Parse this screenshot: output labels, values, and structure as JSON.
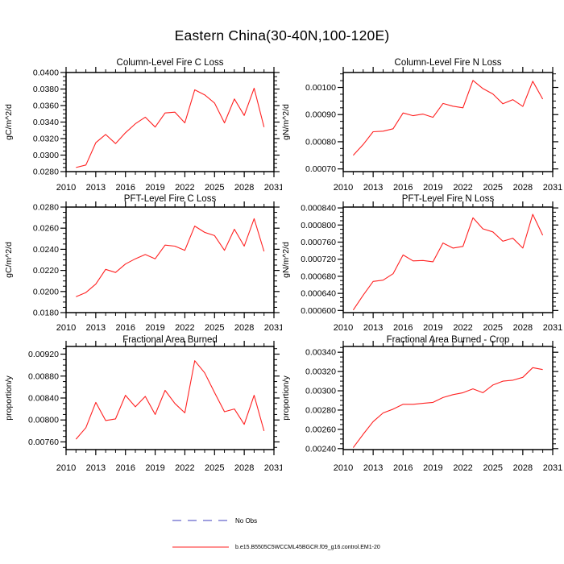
{
  "page_title": "Eastern China(30-40N,100-120E)",
  "colors": {
    "axis": "#000000",
    "series": "#ff2121",
    "no_obs": "#6666cc"
  },
  "legend": {
    "no_obs": {
      "label": "No Obs",
      "style": "dashed",
      "color": "#6666cc"
    },
    "model": {
      "label": "b.e15.B5505C5WCCML45BGCR.f09_g16.control.EM1-20",
      "style": "solid",
      "color": "#ff2121"
    }
  },
  "chart_data": [
    {
      "type": "line",
      "title": "Column-Level Fire C Loss",
      "xlabel": "",
      "ylabel": "gC/m^2/d",
      "color": "#ff2121",
      "grid": false,
      "xlim": [
        2010,
        2031
      ],
      "xticks": [
        2010,
        2013,
        2016,
        2019,
        2022,
        2025,
        2028,
        2031
      ],
      "ylim": [
        0.028,
        0.04
      ],
      "yticks": [
        0.028,
        0.03,
        0.032,
        0.034,
        0.036,
        0.038,
        0.04
      ],
      "ytick_labels": [
        "0.0280",
        "0.0300",
        "0.0320",
        "0.0340",
        "0.0360",
        "0.0380",
        "0.0400"
      ],
      "x": [
        2011,
        2012,
        2013,
        2014,
        2015,
        2016,
        2017,
        2018,
        2019,
        2020,
        2021,
        2022,
        2023,
        2024,
        2025,
        2026,
        2027,
        2028,
        2029,
        2030
      ],
      "values": [
        0.0285,
        0.0288,
        0.0315,
        0.0325,
        0.0314,
        0.0327,
        0.0338,
        0.0346,
        0.0334,
        0.0351,
        0.0352,
        0.0339,
        0.0379,
        0.0373,
        0.0363,
        0.0339,
        0.0368,
        0.0348,
        0.0381,
        0.0334
      ]
    },
    {
      "type": "line",
      "title": "Column-Level Fire N Loss",
      "xlabel": "",
      "ylabel": "gN/m^2/d",
      "color": "#ff2121",
      "grid": false,
      "xlim": [
        2010,
        2031
      ],
      "xticks": [
        2010,
        2013,
        2016,
        2019,
        2022,
        2025,
        2028,
        2031
      ],
      "ylim": [
        0.00069,
        0.001055
      ],
      "yticks": [
        0.0007,
        0.0008,
        0.0009,
        0.001
      ],
      "ytick_labels": [
        "0.00070",
        "0.00080",
        "0.00090",
        "0.00100"
      ],
      "x": [
        2011,
        2012,
        2013,
        2014,
        2015,
        2016,
        2017,
        2018,
        2019,
        2020,
        2021,
        2022,
        2023,
        2024,
        2025,
        2026,
        2027,
        2028,
        2029,
        2030
      ],
      "values": [
        0.00075,
        0.00079,
        0.000837,
        0.000839,
        0.000848,
        0.000906,
        0.000896,
        0.000902,
        0.00089,
        0.000941,
        0.000931,
        0.000925,
        0.001026,
        0.000996,
        0.000976,
        0.00094,
        0.000955,
        0.00093,
        0.001023,
        0.000957
      ]
    },
    {
      "type": "line",
      "title": "PFT-Level Fire C Loss",
      "xlabel": "",
      "ylabel": "gC/m^2/d",
      "color": "#ff2121",
      "grid": false,
      "xlim": [
        2010,
        2031
      ],
      "xticks": [
        2010,
        2013,
        2016,
        2019,
        2022,
        2025,
        2028,
        2031
      ],
      "ylim": [
        0.018,
        0.028
      ],
      "yticks": [
        0.018,
        0.02,
        0.022,
        0.024,
        0.026,
        0.028
      ],
      "ytick_labels": [
        "0.0180",
        "0.0200",
        "0.0220",
        "0.0240",
        "0.0260",
        "0.0280"
      ],
      "x": [
        2011,
        2012,
        2013,
        2014,
        2015,
        2016,
        2017,
        2018,
        2019,
        2020,
        2021,
        2022,
        2023,
        2024,
        2025,
        2026,
        2027,
        2028,
        2029,
        2030
      ],
      "values": [
        0.0195,
        0.0199,
        0.0207,
        0.0221,
        0.0218,
        0.0226,
        0.0231,
        0.0235,
        0.0231,
        0.0244,
        0.0243,
        0.0239,
        0.0262,
        0.0256,
        0.0253,
        0.0239,
        0.0259,
        0.0243,
        0.0269,
        0.0238
      ]
    },
    {
      "type": "line",
      "title": "PFT-Level Fire N Loss",
      "xlabel": "",
      "ylabel": "gN/m^2/d",
      "color": "#ff2121",
      "grid": false,
      "xlim": [
        2010,
        2031
      ],
      "xticks": [
        2010,
        2013,
        2016,
        2019,
        2022,
        2025,
        2028,
        2031
      ],
      "ylim": [
        0.000595,
        0.000842
      ],
      "yticks": [
        0.0006,
        0.00064,
        0.00068,
        0.00072,
        0.00076,
        0.0008,
        0.00084
      ],
      "ytick_labels": [
        "0.000600",
        "0.000640",
        "0.000680",
        "0.000720",
        "0.000760",
        "0.000800",
        "0.000840"
      ],
      "x": [
        2011,
        2012,
        2013,
        2014,
        2015,
        2016,
        2017,
        2018,
        2019,
        2020,
        2021,
        2022,
        2023,
        2024,
        2025,
        2026,
        2027,
        2028,
        2029,
        2030
      ],
      "values": [
        0.000601,
        0.000636,
        0.000668,
        0.000671,
        0.000686,
        0.00073,
        0.000716,
        0.000717,
        0.000714,
        0.000758,
        0.000746,
        0.00075,
        0.000817,
        0.000791,
        0.000784,
        0.000762,
        0.000769,
        0.000746,
        0.000825,
        0.000776
      ]
    },
    {
      "type": "line",
      "title": "Fractional Area Burned",
      "xlabel": "",
      "ylabel": "proportion/y",
      "color": "#ff2121",
      "grid": false,
      "xlim": [
        2010,
        2031
      ],
      "xticks": [
        2010,
        2013,
        2016,
        2019,
        2022,
        2025,
        2028,
        2031
      ],
      "ylim": [
        0.00746,
        0.00934
      ],
      "yticks": [
        0.0076,
        0.008,
        0.0084,
        0.0088,
        0.0092
      ],
      "ytick_labels": [
        "0.00760",
        "0.00800",
        "0.00840",
        "0.00880",
        "0.00920"
      ],
      "x": [
        2011,
        2012,
        2013,
        2014,
        2015,
        2016,
        2017,
        2018,
        2019,
        2020,
        2021,
        2022,
        2023,
        2024,
        2025,
        2026,
        2027,
        2028,
        2029,
        2030
      ],
      "values": [
        0.00765,
        0.00786,
        0.00832,
        0.00799,
        0.00802,
        0.00845,
        0.00824,
        0.00843,
        0.0081,
        0.00854,
        0.0083,
        0.00813,
        0.00908,
        0.00886,
        0.0085,
        0.00815,
        0.0082,
        0.00792,
        0.00845,
        0.0078
      ]
    },
    {
      "type": "line",
      "title": "Fractional Area Burned - Crop",
      "xlabel": "",
      "ylabel": "proportion/y",
      "color": "#ff2121",
      "grid": false,
      "xlim": [
        2010,
        2031
      ],
      "xticks": [
        2010,
        2013,
        2016,
        2019,
        2022,
        2025,
        2028,
        2031
      ],
      "ylim": [
        0.00239,
        0.00346
      ],
      "yticks": [
        0.0024,
        0.0026,
        0.0028,
        0.003,
        0.0032,
        0.0034
      ],
      "ytick_labels": [
        "0.00240",
        "0.00260",
        "0.00280",
        "0.00300",
        "0.00320",
        "0.00340"
      ],
      "x": [
        2011,
        2012,
        2013,
        2014,
        2015,
        2016,
        2017,
        2018,
        2019,
        2020,
        2021,
        2022,
        2023,
        2024,
        2025,
        2026,
        2027,
        2028,
        2029,
        2030
      ],
      "values": [
        0.00241,
        0.00255,
        0.00268,
        0.00277,
        0.00281,
        0.00286,
        0.00286,
        0.00287,
        0.00288,
        0.00293,
        0.00296,
        0.00298,
        0.00302,
        0.00298,
        0.00306,
        0.0031,
        0.00311,
        0.00314,
        0.00324,
        0.00322
      ]
    }
  ]
}
